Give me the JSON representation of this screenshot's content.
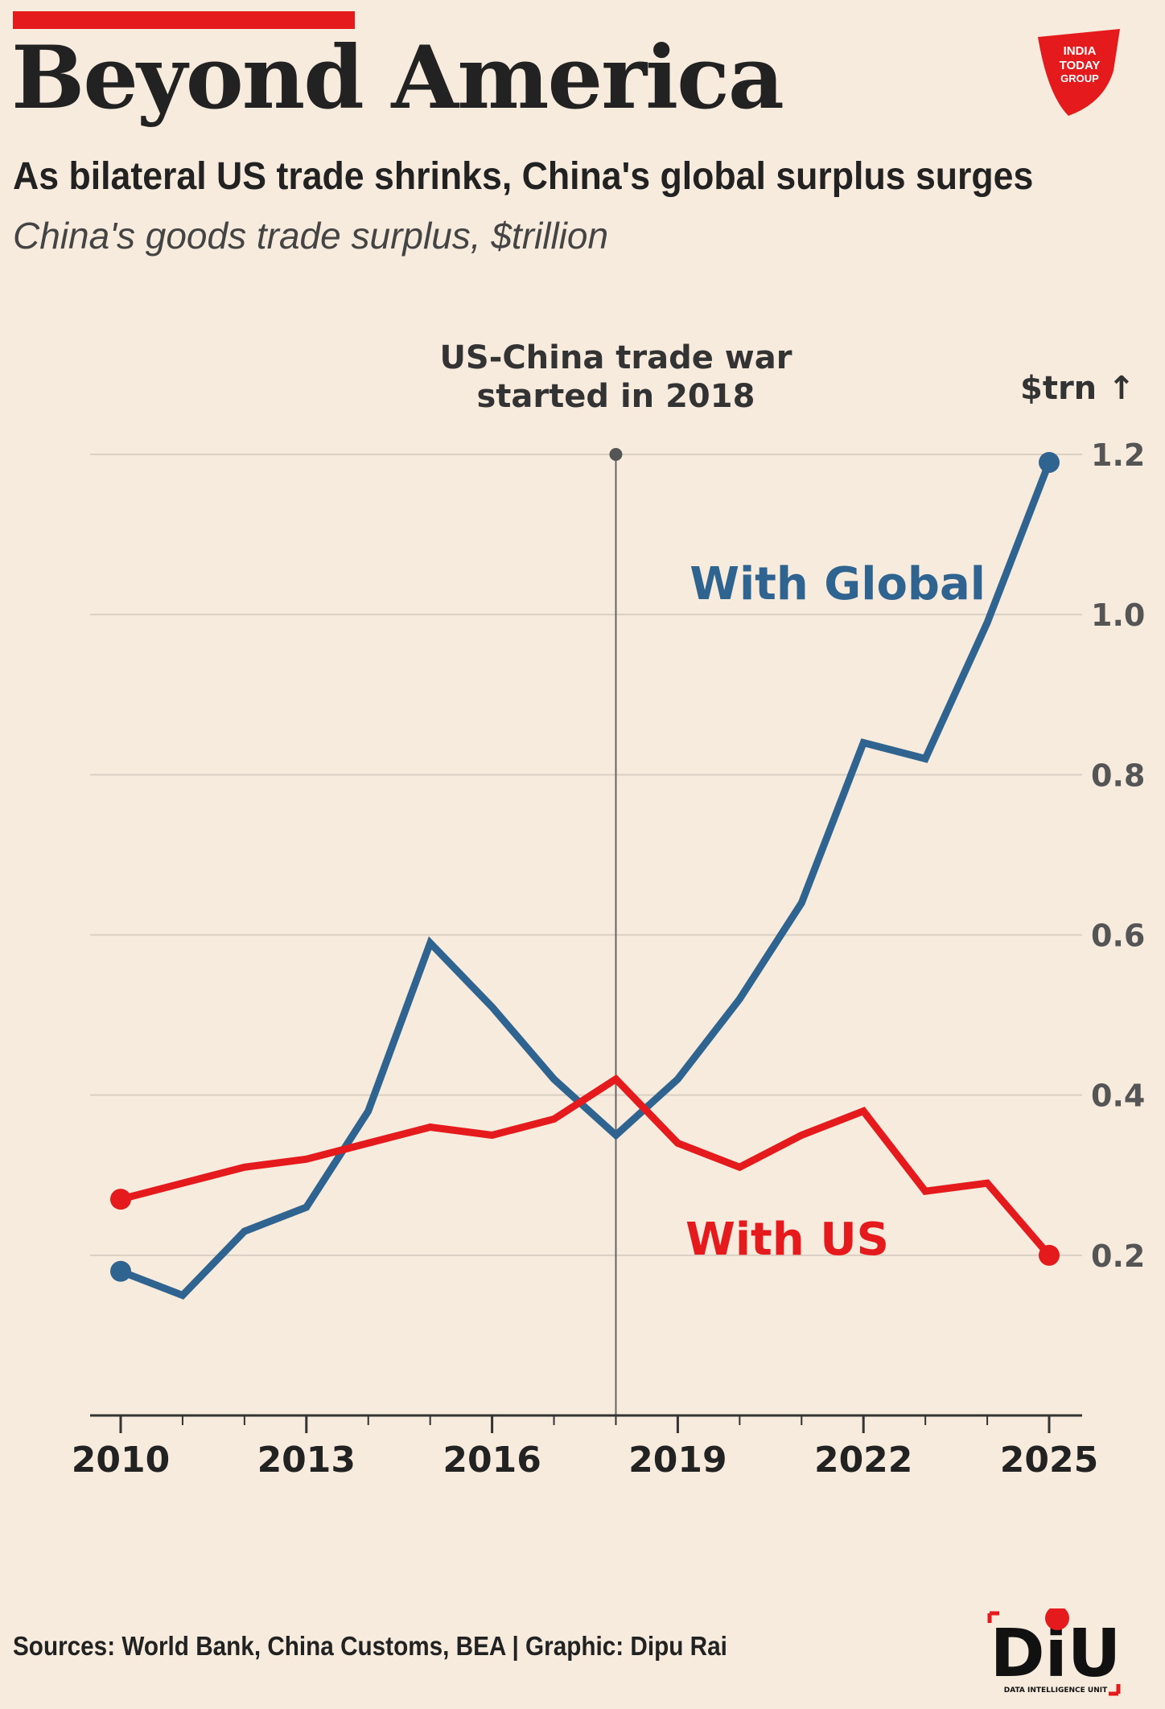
{
  "header": {
    "title": "Beyond America",
    "subtitle": "As bilateral US trade shrinks, China's global surplus surges",
    "unit_line": "China's goods trade surplus, $trillion"
  },
  "logos": {
    "publisher": "INDIA TODAY GROUP",
    "unit": "DATA INTELLIGENCE UNIT",
    "unit_mark": "DiU"
  },
  "footer": {
    "source": "Sources: World Bank, China Customs, BEA | Graphic: Dipu Rai"
  },
  "colors": {
    "background": "#f7ebdd",
    "global": "#2f6490",
    "us": "#e41a1c",
    "accent_bar": "#e41a1c",
    "grid": "#d9cfc3",
    "text": "#222222"
  },
  "chart_data": {
    "type": "line",
    "x": [
      2010,
      2011,
      2012,
      2013,
      2014,
      2015,
      2016,
      2017,
      2018,
      2019,
      2020,
      2021,
      2022,
      2023,
      2024,
      2025
    ],
    "series": [
      {
        "name": "With Global",
        "color": "#2f6490",
        "values": [
          0.18,
          0.15,
          0.23,
          0.26,
          0.38,
          0.59,
          0.51,
          0.42,
          0.35,
          0.42,
          0.52,
          0.64,
          0.84,
          0.82,
          0.99,
          1.19
        ]
      },
      {
        "name": "With US",
        "color": "#e41a1c",
        "values": [
          0.27,
          0.29,
          0.31,
          0.32,
          0.34,
          0.36,
          0.35,
          0.37,
          0.42,
          0.34,
          0.31,
          0.35,
          0.38,
          0.28,
          0.29,
          0.2
        ]
      }
    ],
    "ylabel": "$trn ↑",
    "yticks": [
      0.2,
      0.4,
      0.6,
      0.8,
      1.0,
      1.2
    ],
    "ytick_labels": [
      "0.2",
      "0.4",
      "0.6",
      "0.8",
      "1.0",
      "1.2"
    ],
    "ylim": [
      0.0,
      1.2
    ],
    "xticks": [
      2010,
      2013,
      2016,
      2019,
      2022,
      2025
    ],
    "xtick_labels": [
      "2010",
      "2013",
      "2016",
      "2019",
      "2022",
      "2025"
    ],
    "xlim": [
      2010,
      2025
    ],
    "annotation": {
      "x": 2018,
      "lines": [
        "US-China trade war",
        "started in 2018"
      ]
    },
    "grid": true,
    "legend": "inline labels"
  }
}
